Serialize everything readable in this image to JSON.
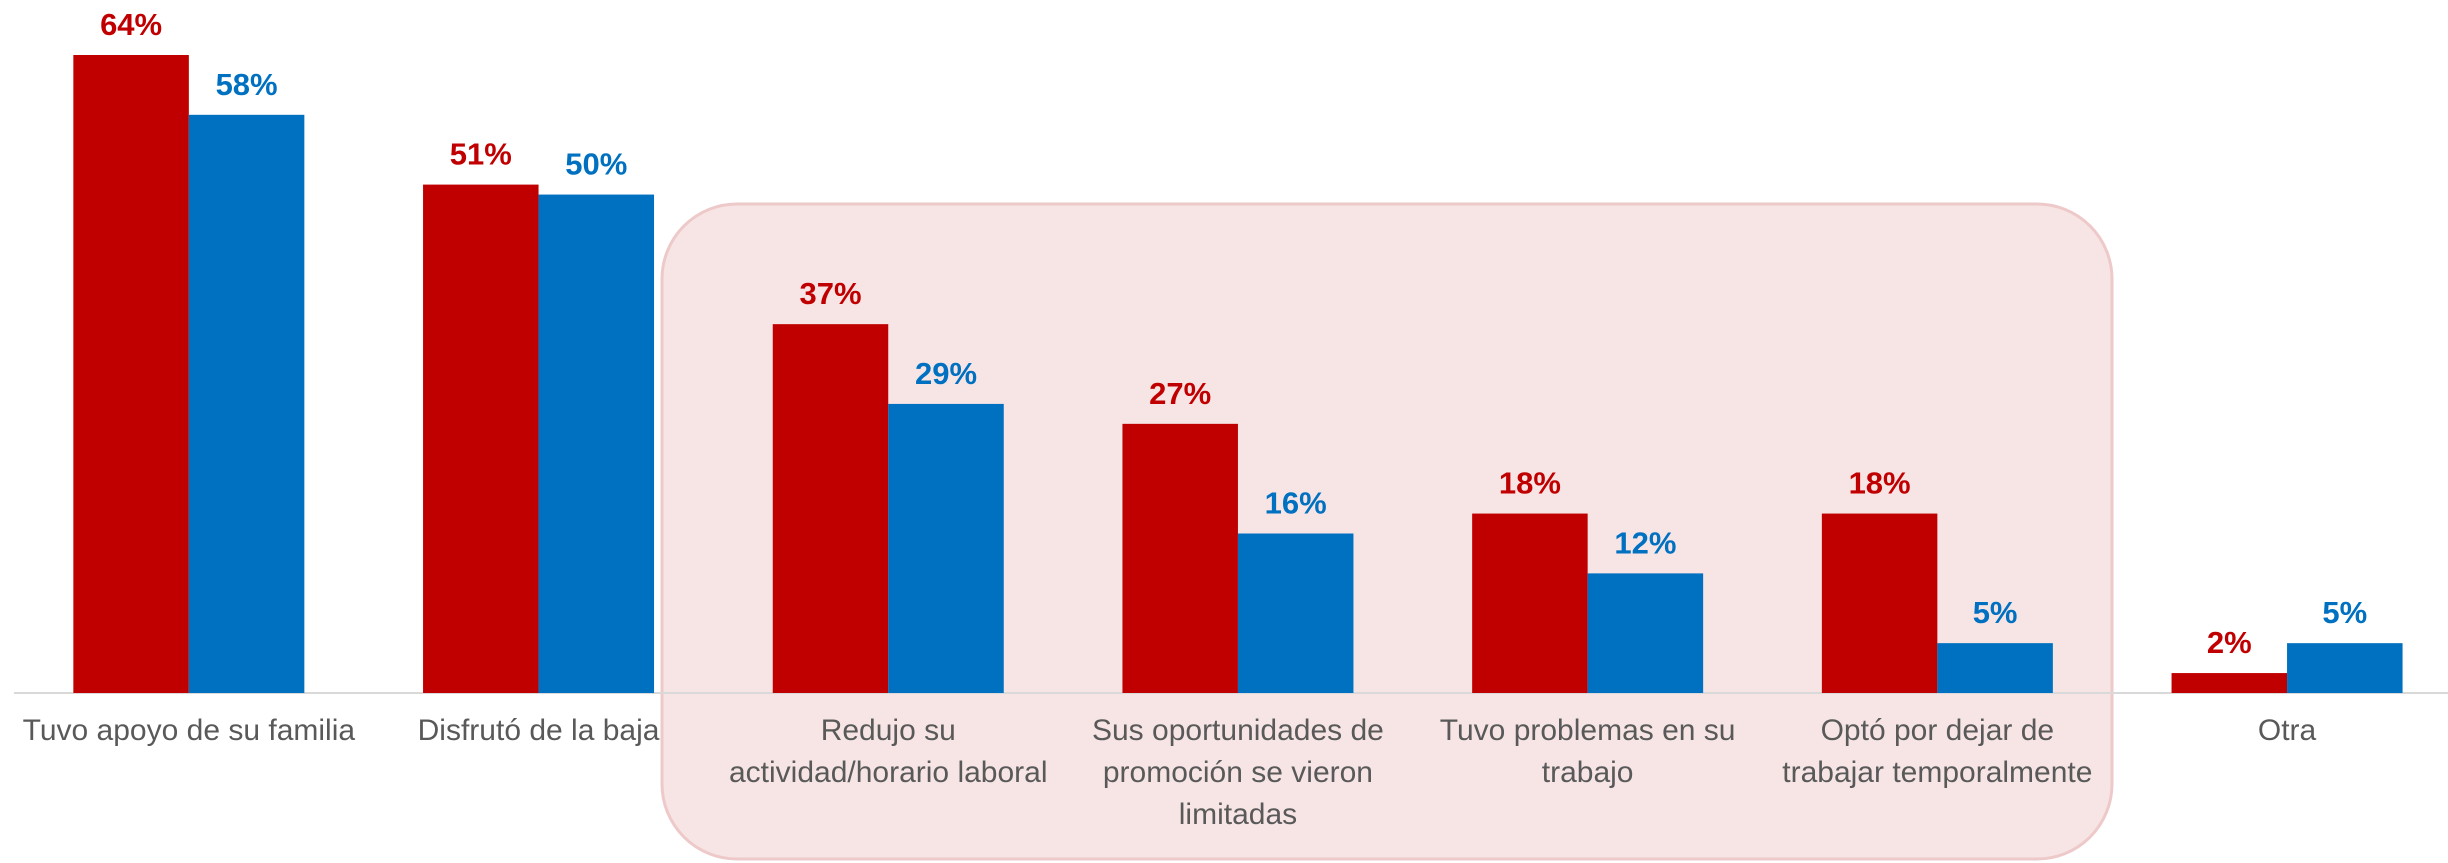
{
  "chart_data": {
    "type": "bar",
    "categories": [
      "Tuvo apoyo de su familia",
      "Disfrutó de la baja",
      "Redujo su actividad/horario laboral",
      "Sus oportunidades de promoción se vieron limitadas",
      "Tuvo problemas en su trabajo",
      "Optó por dejar de trabajar temporalmente",
      "Otra"
    ],
    "series": [
      {
        "color": "#c00000",
        "values": [
          64,
          51,
          37,
          27,
          18,
          18,
          2
        ],
        "value_labels": [
          "64%",
          "51%",
          "37%",
          "27%",
          "18%",
          "18%",
          "2%"
        ]
      },
      {
        "color": "#0070c0",
        "values": [
          58,
          50,
          29,
          16,
          12,
          5,
          5
        ],
        "value_labels": [
          "58%",
          "50%",
          "29%",
          "16%",
          "12%",
          "5%",
          "5%"
        ]
      }
    ]
  }
}
